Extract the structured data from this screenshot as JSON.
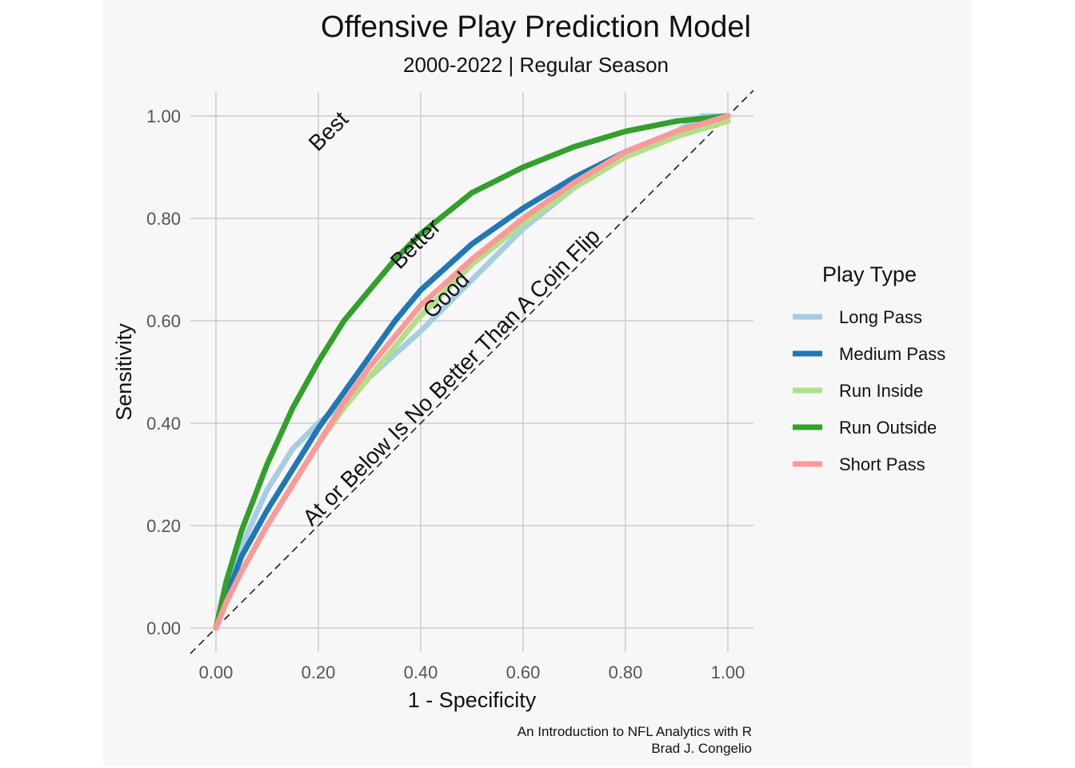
{
  "chart_data": {
    "type": "line",
    "title": "Offensive Play Prediction Model",
    "subtitle": "2000-2022 | Regular Season",
    "xlabel": "1 - Specificity",
    "ylabel": "Sensitivity",
    "xlim": [
      0,
      1
    ],
    "ylim": [
      0,
      1
    ],
    "x_ticks": [
      "0.00",
      "0.20",
      "0.40",
      "0.60",
      "0.80",
      "1.00"
    ],
    "y_ticks": [
      "0.00",
      "0.20",
      "0.40",
      "0.60",
      "0.80",
      "1.00"
    ],
    "grid": true,
    "legend": {
      "title": "Play Type",
      "position": "right"
    },
    "reference_line": {
      "type": "diagonal",
      "style": "dashed"
    },
    "annotations": [
      {
        "text": "Best",
        "x": 0.23,
        "y": 0.96
      },
      {
        "text": "Better",
        "x": 0.4,
        "y": 0.74
      },
      {
        "text": "Good",
        "x": 0.46,
        "y": 0.64
      },
      {
        "text": "At or Below Is No Better Than A Coin Flip",
        "x": 0.47,
        "y": 0.48
      }
    ],
    "series": [
      {
        "name": "Long Pass",
        "color": "#a6cee3",
        "x": [
          0,
          0.02,
          0.05,
          0.1,
          0.15,
          0.2,
          0.25,
          0.3,
          0.4,
          0.5,
          0.6,
          0.7,
          0.8,
          0.9,
          0.95,
          1.0
        ],
        "y": [
          0,
          0.07,
          0.16,
          0.27,
          0.35,
          0.4,
          0.44,
          0.49,
          0.58,
          0.68,
          0.78,
          0.86,
          0.92,
          0.97,
          1.0,
          1.0
        ]
      },
      {
        "name": "Medium Pass",
        "color": "#1f78b4",
        "x": [
          0,
          0.02,
          0.05,
          0.1,
          0.15,
          0.2,
          0.25,
          0.3,
          0.35,
          0.4,
          0.5,
          0.6,
          0.7,
          0.8,
          0.9,
          1.0
        ],
        "y": [
          0,
          0.06,
          0.14,
          0.23,
          0.31,
          0.39,
          0.46,
          0.53,
          0.6,
          0.66,
          0.75,
          0.82,
          0.88,
          0.93,
          0.97,
          1.0
        ]
      },
      {
        "name": "Run Inside",
        "color": "#b2df8a",
        "x": [
          0,
          0.02,
          0.05,
          0.1,
          0.15,
          0.2,
          0.25,
          0.3,
          0.35,
          0.4,
          0.5,
          0.6,
          0.7,
          0.8,
          0.9,
          1.0
        ],
        "y": [
          0,
          0.05,
          0.11,
          0.2,
          0.28,
          0.36,
          0.43,
          0.49,
          0.55,
          0.61,
          0.71,
          0.79,
          0.86,
          0.92,
          0.96,
          0.99
        ]
      },
      {
        "name": "Run Outside",
        "color": "#33a02c",
        "x": [
          0,
          0.02,
          0.05,
          0.1,
          0.15,
          0.2,
          0.25,
          0.3,
          0.35,
          0.4,
          0.5,
          0.6,
          0.7,
          0.8,
          0.9,
          1.0
        ],
        "y": [
          0,
          0.09,
          0.19,
          0.32,
          0.43,
          0.52,
          0.6,
          0.66,
          0.72,
          0.77,
          0.85,
          0.9,
          0.94,
          0.97,
          0.99,
          1.0
        ]
      },
      {
        "name": "Short Pass",
        "color": "#fb9a99",
        "x": [
          0,
          0.02,
          0.05,
          0.1,
          0.15,
          0.2,
          0.25,
          0.3,
          0.35,
          0.4,
          0.5,
          0.6,
          0.7,
          0.8,
          0.9,
          1.0
        ],
        "y": [
          0,
          0.05,
          0.11,
          0.2,
          0.28,
          0.36,
          0.44,
          0.51,
          0.57,
          0.63,
          0.72,
          0.8,
          0.87,
          0.93,
          0.97,
          1.0
        ]
      }
    ],
    "caption": [
      "An Introduction to NFL Analytics with R",
      "Brad J. Congelio"
    ]
  }
}
